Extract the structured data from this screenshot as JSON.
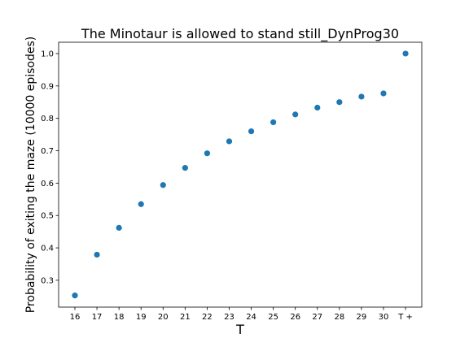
{
  "chart_data": {
    "type": "scatter",
    "title": "The Minotaur is allowed to stand still_DynProg30",
    "xlabel": "T",
    "ylabel": "Probability of exiting the maze (10000 episodes)",
    "categories": [
      "16",
      "17",
      "18",
      "19",
      "20",
      "21",
      "22",
      "23",
      "24",
      "25",
      "26",
      "27",
      "28",
      "29",
      "30",
      "T +"
    ],
    "values": [
      0.253,
      0.379,
      0.462,
      0.535,
      0.594,
      0.647,
      0.692,
      0.729,
      0.76,
      0.788,
      0.812,
      0.833,
      0.85,
      0.867,
      0.877,
      1.0
    ],
    "yticks": [
      "0.3",
      "0.4",
      "0.5",
      "0.6",
      "0.7",
      "0.8",
      "0.9",
      "1.0"
    ],
    "yrange": [
      0.217,
      1.035
    ],
    "grid": false,
    "marker_color": "#1f77b4"
  }
}
